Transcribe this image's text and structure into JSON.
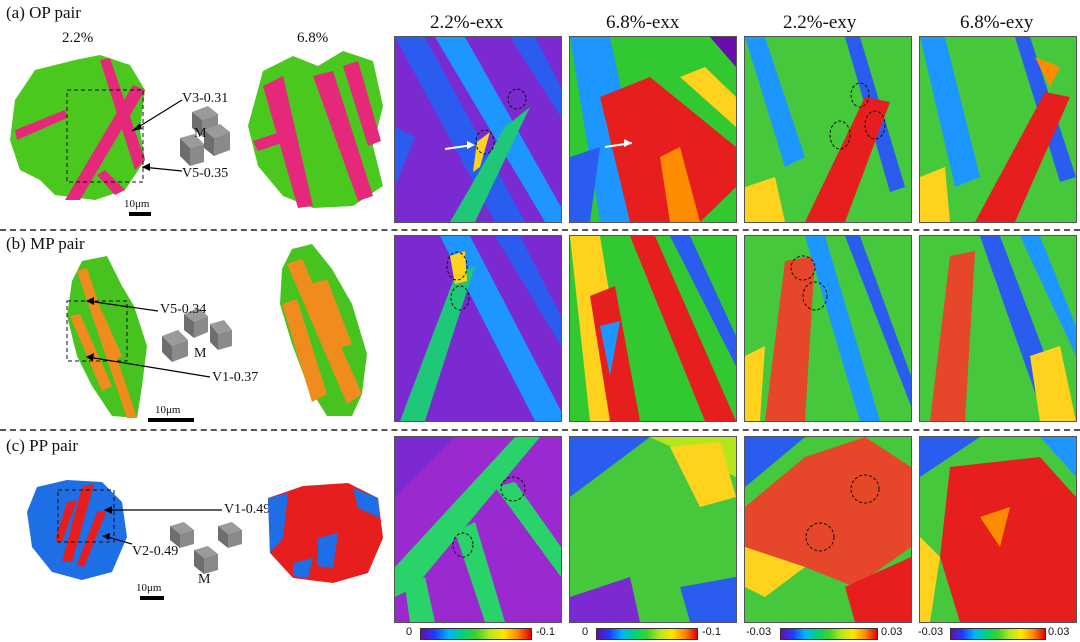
{
  "figure": {
    "rows": [
      {
        "id": "a",
        "label": "(a) OP pair",
        "strain_left": "2.2%",
        "strain_right": "6.8%",
        "variant_top": "V3-0.31",
        "variant_bottom": "V5-0.35",
        "cube_label": "M",
        "scale": "10μm",
        "phase_colors": [
          "#4bc81e",
          "#e6287a"
        ]
      },
      {
        "id": "b",
        "label": "(b) MP pair",
        "variant_top": "V5-0.34",
        "variant_bottom": "V1-0.37",
        "cube_label": "M",
        "scale": "10μm",
        "phase_colors": [
          "#46c31e",
          "#f08c1e"
        ]
      },
      {
        "id": "c",
        "label": "(c) PP pair",
        "variant_top": "V1-0.49",
        "variant_bottom": "V2-0.49",
        "cube_label": "M",
        "scale": "10μm",
        "phase_colors": [
          "#1e6ee6",
          "#e61e1e"
        ]
      }
    ],
    "column_headers": [
      "2.2%-exx",
      "6.8%-exx",
      "2.2%-exy",
      "6.8%-exy"
    ],
    "colorbars": [
      {
        "min": "0",
        "max": "-0.1"
      },
      {
        "min": "0",
        "max": "-0.1"
      },
      {
        "min": "-0.03",
        "max": "0.03"
      },
      {
        "min": "-0.03",
        "max": "0.03"
      }
    ],
    "colormap": [
      "#6a0dad",
      "#1e3cff",
      "#00b4ff",
      "#00d27a",
      "#3ed22a",
      "#b4e61e",
      "#ffe600",
      "#ff8c00",
      "#e60000"
    ]
  }
}
